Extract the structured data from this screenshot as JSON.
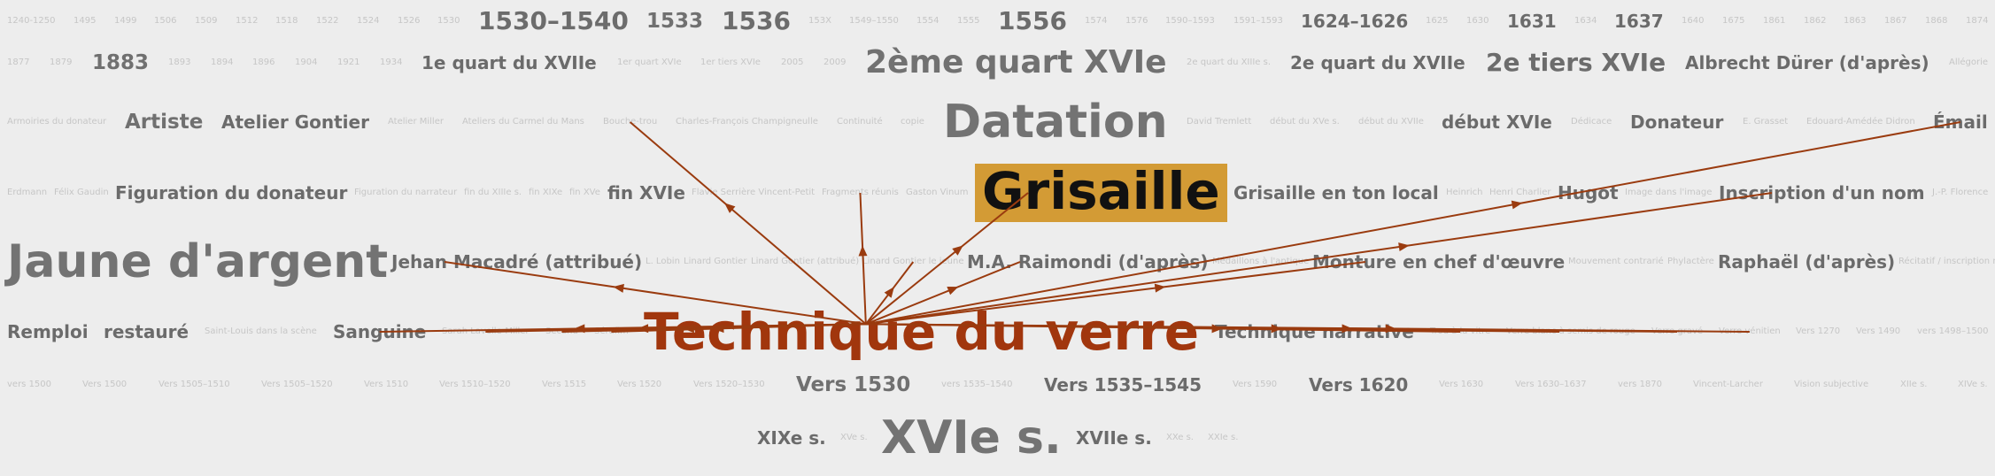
{
  "cloud": {
    "title": "",
    "highlight_color": "#d39b35",
    "focus_color": "#a1360d",
    "edge_color": "#9a3b0f",
    "focus_tag": "Technique du verre",
    "selected_tag": "Grisaille",
    "tags": [
      {
        "text": "1240-1250",
        "w": 1
      },
      {
        "text": "1495",
        "w": 1
      },
      {
        "text": "1499",
        "w": 1
      },
      {
        "text": "1506",
        "w": 1
      },
      {
        "text": "1509",
        "w": 1
      },
      {
        "text": "1512",
        "w": 1
      },
      {
        "text": "1518",
        "w": 1
      },
      {
        "text": "1522",
        "w": 1
      },
      {
        "text": "1524",
        "w": 1
      },
      {
        "text": "1526",
        "w": 1
      },
      {
        "text": "1530",
        "w": 1
      },
      {
        "text": "1530–1540",
        "w": 5
      },
      {
        "text": "1533",
        "w": 4
      },
      {
        "text": "1536",
        "w": 5
      },
      {
        "text": "153X",
        "w": 1
      },
      {
        "text": "1549–1550",
        "w": 1
      },
      {
        "text": "1554",
        "w": 1
      },
      {
        "text": "1555",
        "w": 1
      },
      {
        "text": "1556",
        "w": 5
      },
      {
        "text": "1574",
        "w": 1
      },
      {
        "text": "1576",
        "w": 1
      },
      {
        "text": "1590–1593",
        "w": 1
      },
      {
        "text": "1591–1593",
        "w": 1
      },
      {
        "text": "1624–1626",
        "w": 3
      },
      {
        "text": "1625",
        "w": 1
      },
      {
        "text": "1630",
        "w": 1
      },
      {
        "text": "1631",
        "w": 3
      },
      {
        "text": "1634",
        "w": 1
      },
      {
        "text": "1637",
        "w": 3
      },
      {
        "text": "1640",
        "w": 1
      },
      {
        "text": "1675",
        "w": 1
      },
      {
        "text": "1861",
        "w": 1
      },
      {
        "text": "1862",
        "w": 1
      },
      {
        "text": "1863",
        "w": 1
      },
      {
        "text": "1867",
        "w": 1
      },
      {
        "text": "1868",
        "w": 1
      },
      {
        "text": "1874",
        "w": 1
      },
      {
        "text": "1877",
        "w": 1
      },
      {
        "text": "1879",
        "w": 1
      },
      {
        "text": "1883",
        "w": 4
      },
      {
        "text": "1893",
        "w": 1
      },
      {
        "text": "1894",
        "w": 1
      },
      {
        "text": "1896",
        "w": 1
      },
      {
        "text": "1904",
        "w": 1
      },
      {
        "text": "1921",
        "w": 1
      },
      {
        "text": "1934",
        "w": 1
      },
      {
        "text": "1e quart du XVIIe",
        "w": 3
      },
      {
        "text": "1er quart XVIe",
        "w": 1
      },
      {
        "text": "1er tiers XVIe",
        "w": 1
      },
      {
        "text": "2005",
        "w": 1
      },
      {
        "text": "2009",
        "w": 1
      },
      {
        "text": "2ème quart XVIe",
        "w": 6
      },
      {
        "text": "2e quart du XIIIe s.",
        "w": 1
      },
      {
        "text": "2e quart du XVIIe",
        "w": 3
      },
      {
        "text": "2e tiers XVIe",
        "w": 5
      },
      {
        "text": "Albrecht Dürer (d'après)",
        "w": 3
      },
      {
        "text": "Allégorie",
        "w": 1
      },
      {
        "text": "Armoiries du donateur",
        "w": 1
      },
      {
        "text": "Artiste",
        "w": 4
      },
      {
        "text": "Atelier Gontier",
        "w": 3
      },
      {
        "text": "Atelier Miller",
        "w": 1
      },
      {
        "text": "Ateliers du Carmel du Mans",
        "w": 1
      },
      {
        "text": "Bouche-trou",
        "w": 1
      },
      {
        "text": "Charles-François Champigneulle",
        "w": 1
      },
      {
        "text": "Continuité",
        "w": 1
      },
      {
        "text": "copie",
        "w": 1
      },
      {
        "text": "Datation",
        "w": 7
      },
      {
        "text": "David Tremlett",
        "w": 1
      },
      {
        "text": "début du XVe s.",
        "w": 1
      },
      {
        "text": "début du XVIIe",
        "w": 1
      },
      {
        "text": "début XVIe",
        "w": 3
      },
      {
        "text": "Dédicace",
        "w": 1
      },
      {
        "text": "Donateur",
        "w": 3
      },
      {
        "text": "E. Grasset",
        "w": 1
      },
      {
        "text": "Edouard-Amédée Didron",
        "w": 1
      },
      {
        "text": "Émail",
        "w": 3
      },
      {
        "text": "Erdmann",
        "w": 1
      },
      {
        "text": "Félix Gaudin",
        "w": 1
      },
      {
        "text": "Figuration du donateur",
        "w": 3
      },
      {
        "text": "Figuration du narrateur",
        "w": 1
      },
      {
        "text": "fin du XIIIe s.",
        "w": 1
      },
      {
        "text": "fin XIXe",
        "w": 1
      },
      {
        "text": "fin XVe",
        "w": 1
      },
      {
        "text": "fin XVIe",
        "w": 3
      },
      {
        "text": "Flavie Serrière Vincent-Petit",
        "w": 1
      },
      {
        "text": "Fragments réunis",
        "w": 1
      },
      {
        "text": "Gaston Vinum",
        "w": 1
      },
      {
        "text": "Grisaille",
        "w": 8
      },
      {
        "text": "Grisaille en ton local",
        "w": 3
      },
      {
        "text": "Heinrich",
        "w": 1
      },
      {
        "text": "Henri Charlier",
        "w": 1
      },
      {
        "text": "Hugot",
        "w": 3
      },
      {
        "text": "Image dans l'image",
        "w": 1
      },
      {
        "text": "Inscription d'un nom",
        "w": 3
      },
      {
        "text": "J.-P. Florence",
        "w": 1
      },
      {
        "text": "Jaune d'argent",
        "w": 7
      },
      {
        "text": "Jehan Macadré (attribué)",
        "w": 3
      },
      {
        "text": "L. Lobin",
        "w": 1
      },
      {
        "text": "Linard Gontier",
        "w": 1
      },
      {
        "text": "Linard Gontier (attribué)",
        "w": 1
      },
      {
        "text": "Linard Gontier le jeune",
        "w": 1
      },
      {
        "text": "M.A. Raimondi (d'après)",
        "w": 3
      },
      {
        "text": "Médaillons à l'antique",
        "w": 1
      },
      {
        "text": "Monture en chef d'œuvre",
        "w": 3
      },
      {
        "text": "Mouvement contrarié",
        "w": 1
      },
      {
        "text": "Phylactère",
        "w": 1
      },
      {
        "text": "Raphaël (d'après)",
        "w": 3
      },
      {
        "text": "Récitatif / inscription narrative",
        "w": 1
      },
      {
        "text": "refait",
        "w": 1
      },
      {
        "text": "Remploi",
        "w": 3
      },
      {
        "text": "restauré",
        "w": 3
      },
      {
        "text": "Saint-Louis dans la scène",
        "w": 1
      },
      {
        "text": "Sanguine",
        "w": 3
      },
      {
        "text": "Sarah Lavelle-Miller",
        "w": 1
      },
      {
        "text": "Secand",
        "w": 1
      },
      {
        "text": "Sérafim",
        "w": 1
      },
      {
        "text": "Technique du verre",
        "w": 9
      },
      {
        "text": "Technique narrative",
        "w": 3
      },
      {
        "text": "Trou à la vitre",
        "w": 1
      },
      {
        "text": "Verre blanc à semis de rouge",
        "w": 1
      },
      {
        "text": "Verre gravé",
        "w": 1
      },
      {
        "text": "Verre vénitien",
        "w": 1
      },
      {
        "text": "Vers 1270",
        "w": 1
      },
      {
        "text": "Vers 1490",
        "w": 1
      },
      {
        "text": "vers 1498–1500",
        "w": 1
      },
      {
        "text": "vers 1500",
        "w": 1
      },
      {
        "text": "Vers 1500",
        "w": 1
      },
      {
        "text": "Vers 1505–1510",
        "w": 1
      },
      {
        "text": "Vers 1505–1520",
        "w": 1
      },
      {
        "text": "Vers 1510",
        "w": 1
      },
      {
        "text": "Vers 1510–1520",
        "w": 1
      },
      {
        "text": "Vers 1515",
        "w": 1
      },
      {
        "text": "Vers 1520",
        "w": 1
      },
      {
        "text": "Vers 1520–1530",
        "w": 1
      },
      {
        "text": "Vers 1530",
        "w": 4
      },
      {
        "text": "vers 1535–1540",
        "w": 1
      },
      {
        "text": "Vers 1535–1545",
        "w": 3
      },
      {
        "text": "Vers 1590",
        "w": 1
      },
      {
        "text": "Vers 1620",
        "w": 3
      },
      {
        "text": "Vers 1630",
        "w": 1
      },
      {
        "text": "Vers 1630–1637",
        "w": 1
      },
      {
        "text": "vers 1870",
        "w": 1
      },
      {
        "text": "Vincent-Larcher",
        "w": 1
      },
      {
        "text": "Vision subjective",
        "w": 1
      },
      {
        "text": "XIIe s.",
        "w": 1
      },
      {
        "text": "XIVe s.",
        "w": 1
      },
      {
        "text": "XIXe s.",
        "w": 3
      },
      {
        "text": "XVe s.",
        "w": 1
      },
      {
        "text": "XVIe s.",
        "w": 7
      },
      {
        "text": "XVIIe s.",
        "w": 3
      },
      {
        "text": "XXe s.",
        "w": 1
      },
      {
        "text": "XXIe s.",
        "w": 1
      }
    ],
    "links_from_focus": [
      "Grisaille",
      "Fragments réunis",
      "Bouche-trou",
      "Linard Gontier le jeune",
      "M.A. Raimondi (d'après)",
      "Monture en chef d'œuvre",
      "Émail",
      "Jehan Macadré (attribué)",
      "Inscription d'un nom",
      "Sanguine",
      "Sarah Lavelle-Miller",
      "Secand",
      "Sérafim",
      "Trou à la vitre",
      "Verre blanc à semis de rouge",
      "Verre gravé",
      "Verre vénitien"
    ]
  }
}
